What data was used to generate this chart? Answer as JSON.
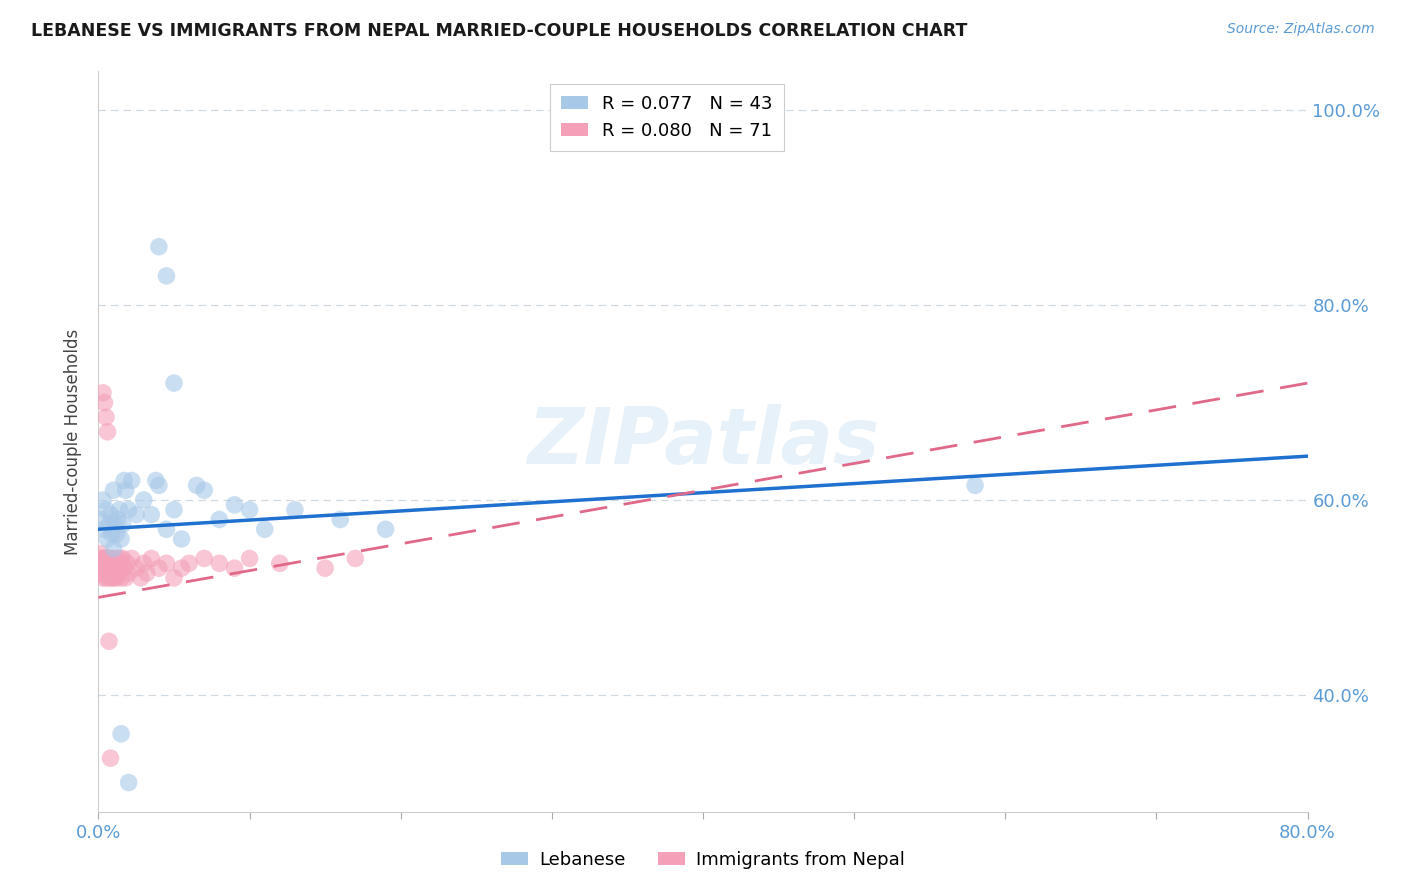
{
  "title": "LEBANESE VS IMMIGRANTS FROM NEPAL MARRIED-COUPLE HOUSEHOLDS CORRELATION CHART",
  "source": "Source: ZipAtlas.com",
  "ylabel": "Married-couple Households",
  "legend_labels": [
    "Lebanese",
    "Immigrants from Nepal"
  ],
  "r_lebanese": 0.077,
  "n_lebanese": 43,
  "r_nepal": 0.08,
  "n_nepal": 71,
  "color_lebanese": "#a8c8e8",
  "color_nepal": "#f4a0b8",
  "trendline_color_lebanese": "#2070d0",
  "trendline_color_nepal": "#e06888",
  "xlim": [
    0.0,
    0.8
  ],
  "ylim": [
    0.28,
    1.04
  ],
  "yticks": [
    0.4,
    0.6,
    0.8,
    1.0
  ],
  "ytick_labels": [
    "40.0%",
    "60.0%",
    "80.0%",
    "100.0%"
  ],
  "axis_color": "#5b9bd5",
  "grid_color": "#d0d8e0",
  "background_color": "#ffffff",
  "watermark": "ZIPatlas",
  "leb_trendline_x": [
    0.0,
    0.8
  ],
  "leb_trendline_y": [
    0.57,
    0.645
  ],
  "nep_trendline_x": [
    0.0,
    0.8
  ],
  "nep_trendline_y": [
    0.5,
    0.72
  ],
  "lebanese_x": [
    0.002,
    0.003,
    0.004,
    0.005,
    0.006,
    0.007,
    0.008,
    0.009,
    0.01,
    0.01,
    0.011,
    0.012,
    0.013,
    0.014,
    0.015,
    0.016,
    0.017,
    0.018,
    0.02,
    0.022,
    0.025,
    0.03,
    0.035,
    0.038,
    0.04,
    0.045,
    0.05,
    0.055,
    0.065,
    0.07,
    0.08,
    0.09,
    0.1,
    0.11,
    0.13,
    0.16,
    0.19,
    0.04,
    0.045,
    0.05,
    0.58,
    0.015,
    0.02
  ],
  "lebanese_y": [
    0.58,
    0.6,
    0.57,
    0.59,
    0.56,
    0.575,
    0.585,
    0.565,
    0.61,
    0.55,
    0.575,
    0.565,
    0.58,
    0.59,
    0.56,
    0.575,
    0.62,
    0.61,
    0.59,
    0.62,
    0.585,
    0.6,
    0.585,
    0.62,
    0.615,
    0.57,
    0.59,
    0.56,
    0.615,
    0.61,
    0.58,
    0.595,
    0.59,
    0.57,
    0.59,
    0.58,
    0.57,
    0.86,
    0.83,
    0.72,
    0.615,
    0.36,
    0.31
  ],
  "nepal_x": [
    0.001,
    0.001,
    0.002,
    0.002,
    0.002,
    0.003,
    0.003,
    0.003,
    0.003,
    0.004,
    0.004,
    0.004,
    0.005,
    0.005,
    0.005,
    0.005,
    0.006,
    0.006,
    0.006,
    0.007,
    0.007,
    0.007,
    0.008,
    0.008,
    0.008,
    0.009,
    0.009,
    0.009,
    0.01,
    0.01,
    0.01,
    0.011,
    0.011,
    0.012,
    0.012,
    0.012,
    0.013,
    0.013,
    0.014,
    0.014,
    0.015,
    0.015,
    0.016,
    0.017,
    0.018,
    0.019,
    0.02,
    0.022,
    0.025,
    0.028,
    0.03,
    0.032,
    0.035,
    0.04,
    0.045,
    0.05,
    0.055,
    0.06,
    0.07,
    0.08,
    0.09,
    0.1,
    0.12,
    0.15,
    0.17,
    0.003,
    0.004,
    0.005,
    0.006,
    0.007,
    0.008
  ],
  "nepal_y": [
    0.54,
    0.53,
    0.545,
    0.535,
    0.525,
    0.54,
    0.53,
    0.525,
    0.52,
    0.54,
    0.535,
    0.525,
    0.54,
    0.53,
    0.52,
    0.535,
    0.54,
    0.53,
    0.525,
    0.54,
    0.53,
    0.52,
    0.535,
    0.525,
    0.54,
    0.53,
    0.52,
    0.535,
    0.54,
    0.53,
    0.52,
    0.535,
    0.525,
    0.54,
    0.53,
    0.52,
    0.535,
    0.525,
    0.54,
    0.53,
    0.52,
    0.535,
    0.54,
    0.53,
    0.52,
    0.535,
    0.525,
    0.54,
    0.53,
    0.52,
    0.535,
    0.525,
    0.54,
    0.53,
    0.535,
    0.52,
    0.53,
    0.535,
    0.54,
    0.535,
    0.53,
    0.54,
    0.535,
    0.53,
    0.54,
    0.71,
    0.7,
    0.685,
    0.67,
    0.455,
    0.335
  ]
}
